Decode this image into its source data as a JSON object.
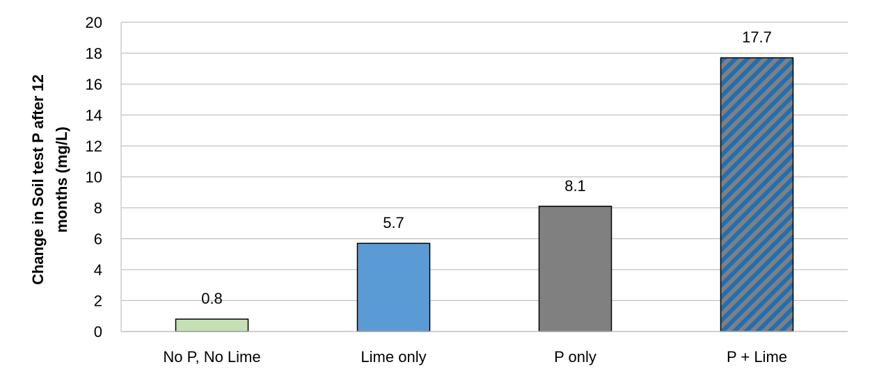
{
  "chart_data": {
    "type": "bar",
    "title": "",
    "xlabel": "",
    "ylabel_lines": [
      "Change in Soil test P after 12",
      "months (mg/L)"
    ],
    "categories": [
      "No P, No Lime",
      "Lime only",
      "P only",
      "P + Lime"
    ],
    "values": [
      0.8,
      5.7,
      8.1,
      17.7
    ],
    "data_labels": [
      "0.8",
      "5.7",
      "8.1",
      "17.7"
    ],
    "ylim": [
      0,
      20
    ],
    "yticks": [
      0,
      2,
      4,
      6,
      8,
      10,
      12,
      14,
      16,
      18,
      20
    ],
    "ytick_labels": [
      "0",
      "2",
      "4",
      "6",
      "8",
      "10",
      "12",
      "14",
      "16",
      "18",
      "20"
    ],
    "grid": "horizontal",
    "legend": "none",
    "bar_styles": [
      {
        "fill": "#c5e0b4",
        "pattern": "solid"
      },
      {
        "fill": "#5b9bd5",
        "pattern": "solid"
      },
      {
        "fill": "#808080",
        "pattern": "solid"
      },
      {
        "fill": "#808080",
        "pattern": "diagonal-stripes",
        "stripe_color": "#1f6fb5"
      }
    ],
    "gridline_color": "#bfbfbf",
    "bar_outline_color": "#000000"
  }
}
